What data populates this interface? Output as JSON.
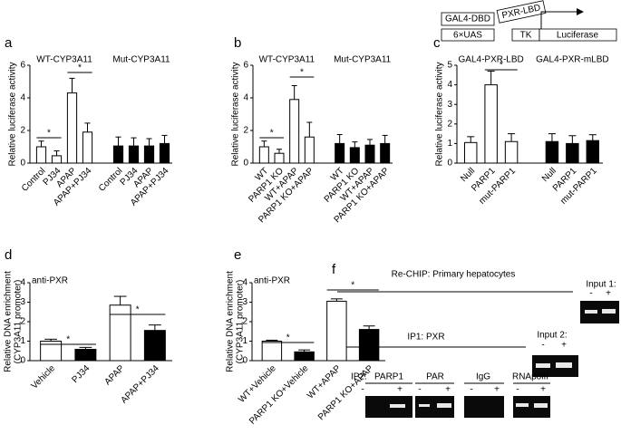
{
  "chart_data": [
    {
      "type": "bar",
      "label": "a",
      "ylabel": "Relative luciferase activity",
      "groups": [
        "WT-CYP3A11",
        "Mut-CYP3A11"
      ],
      "categories": [
        "Control",
        "PJ34",
        "APAP",
        "APAP+PJ34",
        "Control",
        "PJ34",
        "APAP",
        "APAP+PJ34"
      ],
      "values": [
        1.0,
        0.45,
        4.3,
        1.9,
        1.05,
        1.05,
        1.05,
        1.2
      ],
      "errors": [
        0.35,
        0.3,
        0.9,
        0.55,
        0.55,
        0.5,
        0.45,
        0.5
      ],
      "colors": [
        "#ffffff",
        "#ffffff",
        "#ffffff",
        "#ffffff",
        "#000000",
        "#000000",
        "#000000",
        "#000000"
      ],
      "ylim": [
        0,
        6
      ],
      "yticks": [
        0,
        2,
        4,
        6
      ],
      "annotations": [
        "*",
        "*"
      ]
    },
    {
      "type": "bar",
      "label": "b",
      "ylabel": "Relative luciferase activity",
      "groups": [
        "WT-CYP3A11",
        "Mut-CYP3A11"
      ],
      "categories": [
        "WT",
        "PARP1 KO",
        "WT+APAP",
        "PARP1 KO+APAP",
        "WT",
        "PARP1 KO",
        "WT+APAP",
        "PARP1 KO+APAP"
      ],
      "values": [
        1.0,
        0.6,
        3.9,
        1.6,
        1.2,
        0.95,
        1.1,
        1.2
      ],
      "errors": [
        0.35,
        0.25,
        0.85,
        0.9,
        0.55,
        0.35,
        0.35,
        0.5
      ],
      "colors": [
        "#ffffff",
        "#ffffff",
        "#ffffff",
        "#ffffff",
        "#000000",
        "#000000",
        "#000000",
        "#000000"
      ],
      "ylim": [
        0,
        6
      ],
      "yticks": [
        0,
        2,
        4,
        6
      ],
      "annotations": [
        "*",
        "*"
      ]
    },
    {
      "type": "bar",
      "label": "c",
      "ylabel": "Relative luciferase activity",
      "groups": [
        "GAL4-PXR-LBD",
        "GAL4-PXR-mLBD"
      ],
      "categories": [
        "Null",
        "PARP1",
        "mut-PARP1",
        "Null",
        "PARP1",
        "mut-PARP1"
      ],
      "values": [
        1.05,
        4.0,
        1.1,
        1.1,
        1.0,
        1.15
      ],
      "errors": [
        0.3,
        0.7,
        0.4,
        0.4,
        0.4,
        0.3
      ],
      "colors": [
        "#ffffff",
        "#ffffff",
        "#ffffff",
        "#000000",
        "#000000",
        "#000000"
      ],
      "ylim": [
        0,
        5
      ],
      "yticks": [
        0,
        1,
        2,
        3,
        4,
        5
      ],
      "annotations": [
        "*"
      ]
    },
    {
      "type": "bar",
      "label": "d",
      "title": "anti-PXR",
      "ylabel": [
        "Relative DNA enrichment",
        "(CYP3A11 promoter)"
      ],
      "categories": [
        "Vehicle",
        "PJ34",
        "APAP",
        "APAP+PJ34"
      ],
      "values": [
        1.0,
        0.58,
        2.85,
        1.55
      ],
      "errors": [
        0.1,
        0.1,
        0.45,
        0.28
      ],
      "colors": [
        "#ffffff",
        "#000000",
        "#ffffff",
        "#000000"
      ],
      "ylim": [
        0,
        4
      ],
      "yticks": [
        0,
        1,
        2,
        3,
        4
      ],
      "annotations": [
        "*",
        "*"
      ]
    },
    {
      "type": "bar",
      "label": "e",
      "title": "anti-PXR",
      "ylabel": [
        "Relative DNA enrichment",
        "(CYP3A11 promoter)"
      ],
      "categories": [
        "WT+Vehicle",
        "PARP1 KO+Vehicle",
        "WT+APAP",
        "PARP1 KO+APAP"
      ],
      "values": [
        1.0,
        0.45,
        3.05,
        1.6
      ],
      "errors": [
        0.05,
        0.1,
        0.12,
        0.18
      ],
      "colors": [
        "#ffffff",
        "#000000",
        "#ffffff",
        "#000000"
      ],
      "ylim": [
        0,
        4
      ],
      "yticks": [
        0,
        1,
        2,
        3,
        4
      ],
      "annotations": [
        "*",
        "*"
      ]
    }
  ],
  "construct": {
    "gal4_dbd": "GAL4-DBD",
    "pxr_lbd": "PXR-LBD",
    "uas": "6×UAS",
    "tk": "TK",
    "luciferase": "Luciferase"
  },
  "panel_f": {
    "label": "f",
    "title": "Re-CHIP: Primary hepatocytes",
    "ip1": "IP1: PXR",
    "ip2": "IP2:",
    "lanes": [
      {
        "label": "PARP1",
        "signs": [
          "-",
          "+"
        ]
      },
      {
        "label": "PAR",
        "signs": [
          "-",
          "+"
        ]
      },
      {
        "label": "IgG",
        "signs": [
          "-",
          "+"
        ]
      },
      {
        "label": "RNApolII",
        "signs": [
          "-",
          "+"
        ]
      }
    ],
    "input1": {
      "label": "Input 1:",
      "signs": [
        "-",
        "+"
      ]
    },
    "input2": {
      "label": "Input 2:",
      "signs": [
        "-",
        "+"
      ]
    }
  }
}
